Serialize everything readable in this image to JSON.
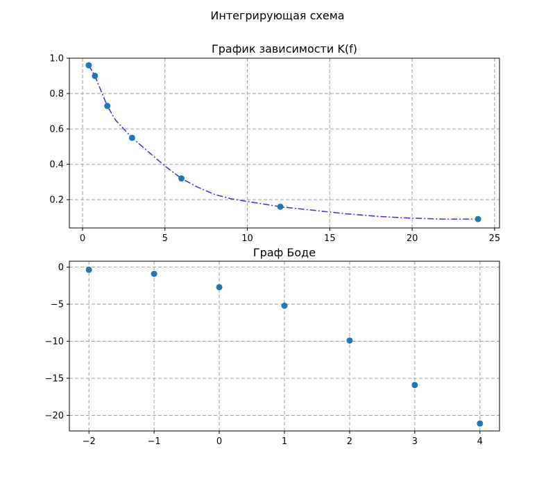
{
  "figure": {
    "title": "Интегрирующая схема"
  },
  "chart_data": [
    {
      "type": "line",
      "title": "График зависимости K(f)",
      "xlabel": "",
      "ylabel": "",
      "xlim": [
        -0.8,
        25.3
      ],
      "ylim": [
        0.04,
        1.0
      ],
      "xticks": [
        0,
        5,
        10,
        15,
        20,
        25
      ],
      "yticks": [
        0.2,
        0.4,
        0.6,
        0.8,
        1.0
      ],
      "xtick_labels": [
        "0",
        "5",
        "10",
        "15",
        "20",
        "25"
      ],
      "ytick_labels": [
        "0.2",
        "0.4",
        "0.6",
        "0.8",
        "1.0"
      ],
      "grid": true,
      "line_color": "#3a3ae0",
      "marker_color": "#1f77b4",
      "points": {
        "x": [
          0.375,
          0.75,
          1.5,
          3,
          6,
          12,
          24
        ],
        "y": [
          0.96,
          0.9,
          0.73,
          0.55,
          0.32,
          0.16,
          0.09
        ]
      },
      "curve": {
        "x": [
          0.375,
          0.75,
          1.5,
          2,
          3,
          4,
          5,
          6,
          7,
          8,
          9,
          10,
          11,
          12,
          14,
          16,
          18,
          20,
          22,
          24
        ],
        "y": [
          0.96,
          0.9,
          0.73,
          0.65,
          0.55,
          0.47,
          0.39,
          0.32,
          0.27,
          0.23,
          0.205,
          0.19,
          0.175,
          0.16,
          0.14,
          0.12,
          0.105,
          0.095,
          0.09,
          0.09
        ]
      }
    },
    {
      "type": "scatter",
      "title": "Граф Боде",
      "xlabel": "",
      "ylabel": "",
      "xlim": [
        -2.3,
        4.3
      ],
      "ylim": [
        -22.1,
        0.8
      ],
      "xticks": [
        -2,
        -1,
        0,
        1,
        2,
        3,
        4
      ],
      "yticks": [
        0,
        -5,
        -10,
        -15,
        -20
      ],
      "xtick_labels": [
        "−2",
        "−1",
        "0",
        "1",
        "2",
        "3",
        "4"
      ],
      "ytick_labels": [
        "0",
        "−5",
        "−10",
        "−15",
        "−20"
      ],
      "grid": true,
      "marker_color": "#1f77b4",
      "points": {
        "x": [
          -2,
          -1,
          0,
          1,
          2,
          3,
          4
        ],
        "y": [
          -0.35,
          -0.9,
          -2.7,
          -5.2,
          -9.9,
          -15.9,
          -21.1
        ]
      }
    }
  ]
}
